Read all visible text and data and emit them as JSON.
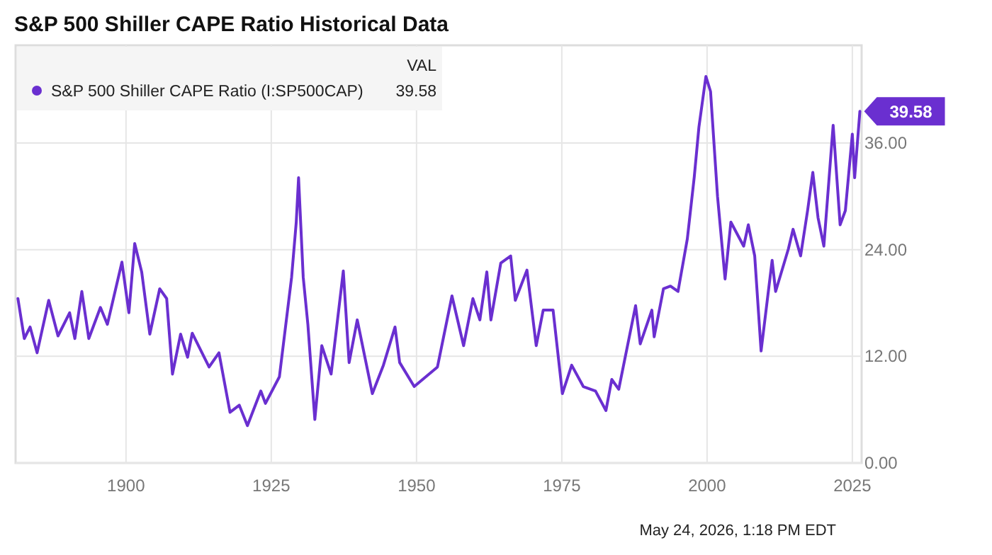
{
  "chart_data": {
    "type": "line",
    "title": "S&P 500 Shiller CAPE Ratio Historical Data",
    "legend_title": "VAL",
    "annotations": [
      "May 24, 2026, 1:18 PM EDT"
    ],
    "xlim": [
      1881,
      2026.6
    ],
    "xticks": [
      1900,
      1925,
      1950,
      1975,
      2000,
      2025
    ],
    "ylim": [
      0,
      47
    ],
    "yticks": [
      {
        "value": 0,
        "label": "0.00"
      },
      {
        "value": 12,
        "label": "12.00"
      },
      {
        "value": 24,
        "label": "24.00"
      },
      {
        "value": 36,
        "label": "36.00"
      }
    ],
    "grid": true,
    "legend": "top left",
    "marker": "none",
    "line_style": "solid",
    "series": [
      {
        "name": "S&P 500 Shiller CAPE Ratio (I:SP500CAP)",
        "color": "#6a2fd0",
        "x": [
          1881.4,
          1882.5,
          1883.5,
          1884.7,
          1886.7,
          1888.3,
          1890.3,
          1891.2,
          1892.4,
          1893.6,
          1895.6,
          1896.8,
          1899.3,
          1900.5,
          1901.5,
          1902.7,
          1904.1,
          1905.8,
          1907,
          1908,
          1909.4,
          1910.6,
          1911.4,
          1914.3,
          1916,
          1917.9,
          1919.5,
          1920.9,
          1923.2,
          1924,
          1926.4,
          1928.5,
          1929.3,
          1929.7,
          1930.5,
          1931.3,
          1932.5,
          1933.7,
          1935.3,
          1937.4,
          1938.4,
          1939.8,
          1942.4,
          1944.3,
          1946.3,
          1947.1,
          1949.6,
          1953.6,
          1956.1,
          1958.1,
          1959.7,
          1960.9,
          1962.1,
          1962.8,
          1964.5,
          1966.2,
          1967,
          1969,
          1970.6,
          1971.8,
          1973.5,
          1975.1,
          1976.7,
          1978.7,
          1980.8,
          1982.6,
          1983.6,
          1984.8,
          1987.7,
          1988.5,
          1990.5,
          1990.9,
          1992.5,
          1993.7,
          1995,
          1996.6,
          1997.8,
          1998.6,
          1999.8,
          2000.6,
          2001.8,
          2003.1,
          2004.1,
          2006.3,
          2007.1,
          2008.2,
          2009.3,
          2011.2,
          2011.8,
          2014,
          2014.8,
          2016.1,
          2017.3,
          2018.2,
          2019.1,
          2020.1,
          2021.7,
          2022.9,
          2023.8,
          2025,
          2025.4,
          2026.3
        ],
        "values": [
          18.5,
          14.0,
          15.3,
          12.4,
          18.3,
          14.3,
          16.9,
          14.0,
          19.3,
          14.0,
          17.5,
          15.6,
          22.6,
          16.9,
          24.7,
          21.5,
          14.5,
          19.6,
          18.5,
          10.0,
          14.5,
          11.9,
          14.6,
          10.8,
          12.4,
          5.7,
          6.5,
          4.2,
          8.1,
          6.7,
          9.7,
          20.9,
          27.1,
          32.1,
          20.9,
          15.6,
          4.9,
          13.2,
          10.0,
          21.6,
          11.3,
          16.1,
          7.8,
          11.0,
          15.3,
          11.3,
          8.6,
          10.8,
          18.8,
          13.2,
          18.5,
          16.1,
          21.5,
          16.1,
          22.5,
          23.3,
          18.3,
          21.7,
          13.2,
          17.2,
          17.2,
          7.8,
          11.0,
          8.6,
          8.1,
          5.9,
          9.4,
          8.3,
          17.7,
          13.4,
          17.2,
          14.2,
          19.6,
          19.9,
          19.3,
          25.2,
          32.2,
          37.8,
          43.5,
          41.8,
          30.0,
          20.7,
          27.1,
          24.4,
          26.8,
          23.3,
          12.6,
          22.8,
          19.3,
          24.1,
          26.3,
          23.3,
          28.4,
          32.7,
          27.6,
          24.4,
          38.0,
          26.8,
          28.4,
          37.0,
          32.1,
          39.58
        ],
        "value_labels": [
          null,
          null,
          null,
          null,
          null,
          null,
          null,
          null,
          null,
          null,
          null,
          null,
          null,
          null,
          null,
          null,
          null,
          null,
          null,
          null,
          null,
          null,
          null,
          null,
          null,
          null,
          null,
          null,
          null,
          null,
          null,
          null,
          null,
          null,
          null,
          null,
          null,
          null,
          null,
          null,
          null,
          null,
          null,
          null,
          null,
          null,
          null,
          null,
          null,
          null,
          null,
          null,
          null,
          null,
          null,
          null,
          null,
          null,
          null,
          null,
          null,
          null,
          null,
          null,
          null,
          null,
          null,
          null,
          null,
          null,
          null,
          null,
          null,
          null,
          null,
          null,
          null,
          null,
          null,
          null,
          null,
          null,
          null,
          null,
          null,
          null,
          null,
          null,
          null,
          null,
          null,
          null,
          null,
          null,
          null,
          null,
          null,
          null,
          null,
          null,
          null,
          "39.58"
        ]
      }
    ]
  }
}
